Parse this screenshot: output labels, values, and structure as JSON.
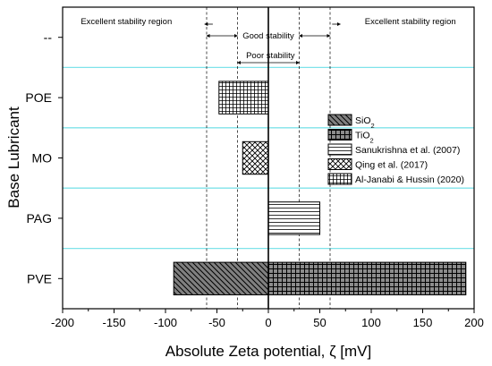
{
  "chart_data": {
    "type": "bar",
    "orientation": "horizontal",
    "xlabel": "Absolute Zeta potential, ζ [mV]",
    "ylabel": "Base Lubricant",
    "xlim": [
      -200,
      200
    ],
    "xticks": [
      -200,
      -150,
      -100,
      -50,
      0,
      50,
      100,
      150,
      200
    ],
    "categories": [
      "PVE",
      "PAG",
      "MO",
      "POE",
      "--"
    ],
    "grid": false,
    "legend_position": "right",
    "bars": [
      {
        "category": "PVE",
        "series": "SiO2",
        "start": -92,
        "end": 0
      },
      {
        "category": "PVE",
        "series": "TiO2",
        "start": 0,
        "end": 192
      },
      {
        "category": "PAG",
        "series": "Sanukrishna et al. (2007)",
        "start": 0,
        "end": 50
      },
      {
        "category": "MO",
        "series": "Qing et al. (2017)",
        "start": -25,
        "end": 0
      },
      {
        "category": "POE",
        "series": "Al-Janabi & Hussin (2020)",
        "start": -48,
        "end": 0
      }
    ],
    "legend": [
      {
        "pattern": "hatch-diag",
        "label": "SiO",
        "sub": "2"
      },
      {
        "pattern": "grid-square",
        "label": "TiO",
        "sub": "2"
      },
      {
        "pattern": "hlines",
        "label": "Sanukrishna et al. (2007)",
        "sub": ""
      },
      {
        "pattern": "crosshatch",
        "label": "Qing et al. (2017)",
        "sub": ""
      },
      {
        "pattern": "grid-fine",
        "label": "Al-Janabi & Hussin (2020)",
        "sub": ""
      }
    ],
    "reference_lines": [
      -60,
      -30,
      30,
      60
    ],
    "annotations": [
      {
        "text": "Excellent stability region",
        "level": 1
      },
      {
        "text": "Good stability",
        "level": 2
      },
      {
        "text": "Poor stability",
        "level": 3
      },
      {
        "text": "Excellent stability region",
        "level": 1
      }
    ]
  }
}
